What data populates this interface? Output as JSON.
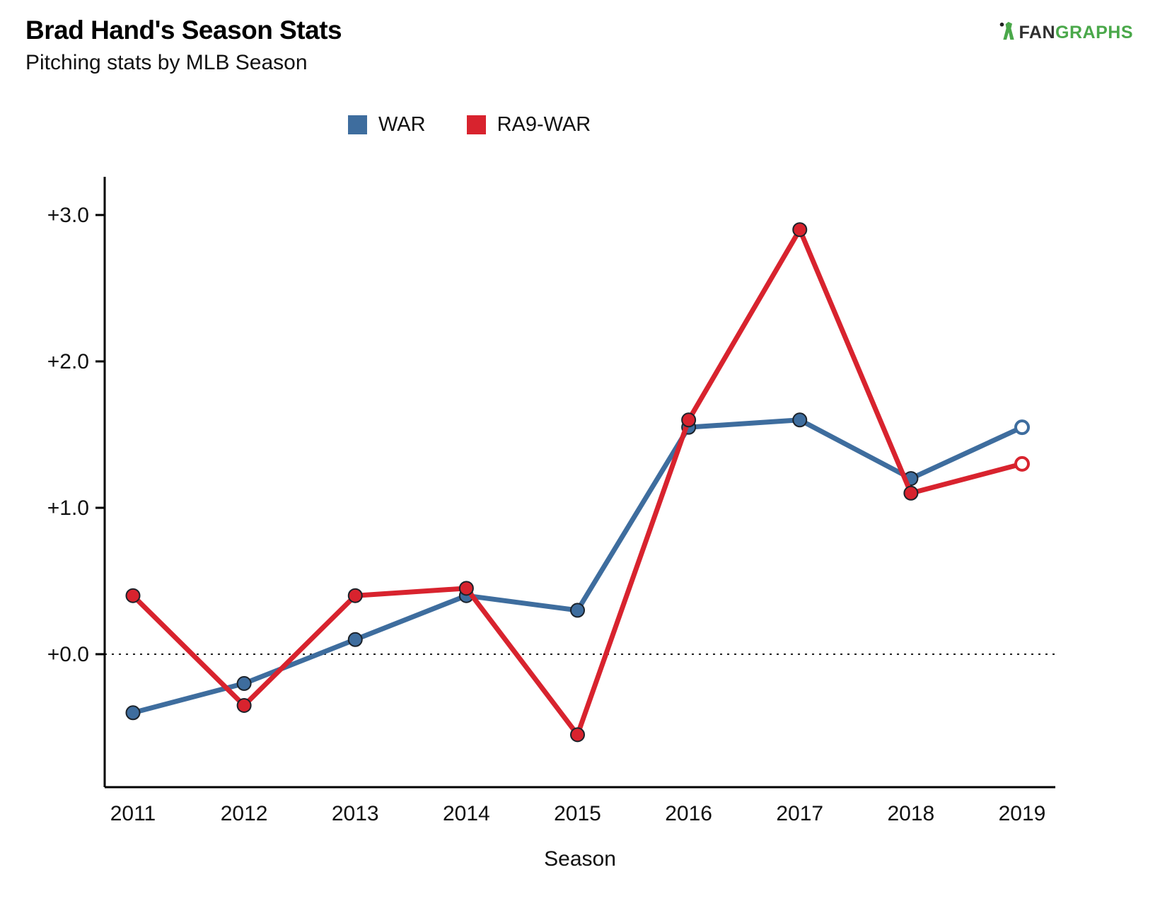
{
  "header": {
    "title": "Brad Hand's Season Stats",
    "subtitle": "Pitching stats by MLB Season"
  },
  "brand": {
    "fan": "FAN",
    "graphs": "GRAPHS",
    "green": "#4aa84a"
  },
  "chart_data": {
    "type": "line",
    "title": "Brad Hand's Season Stats",
    "subtitle": "Pitching stats by MLB Season",
    "categories": [
      "2011",
      "2012",
      "2013",
      "2014",
      "2015",
      "2016",
      "2017",
      "2018",
      "2019"
    ],
    "series": [
      {
        "name": "WAR",
        "color": "#3e6d9e",
        "values": [
          -0.4,
          -0.2,
          0.1,
          0.4,
          0.3,
          1.55,
          1.6,
          1.2,
          1.55
        ],
        "last_point_open": true
      },
      {
        "name": "RA9-WAR",
        "color": "#d8232e",
        "values": [
          0.4,
          -0.35,
          0.4,
          0.45,
          -0.55,
          1.6,
          2.9,
          1.1,
          1.3
        ],
        "last_point_open": true
      }
    ],
    "xlabel": "Season",
    "ylabel": "",
    "y_ticks": [
      "+0.0",
      "+1.0",
      "+2.0",
      "+3.0"
    ],
    "y_tick_values": [
      0,
      1,
      2,
      3
    ],
    "ylim": [
      -0.85,
      3.3
    ],
    "zero_line": true,
    "grid": false,
    "legend_position": "top"
  }
}
